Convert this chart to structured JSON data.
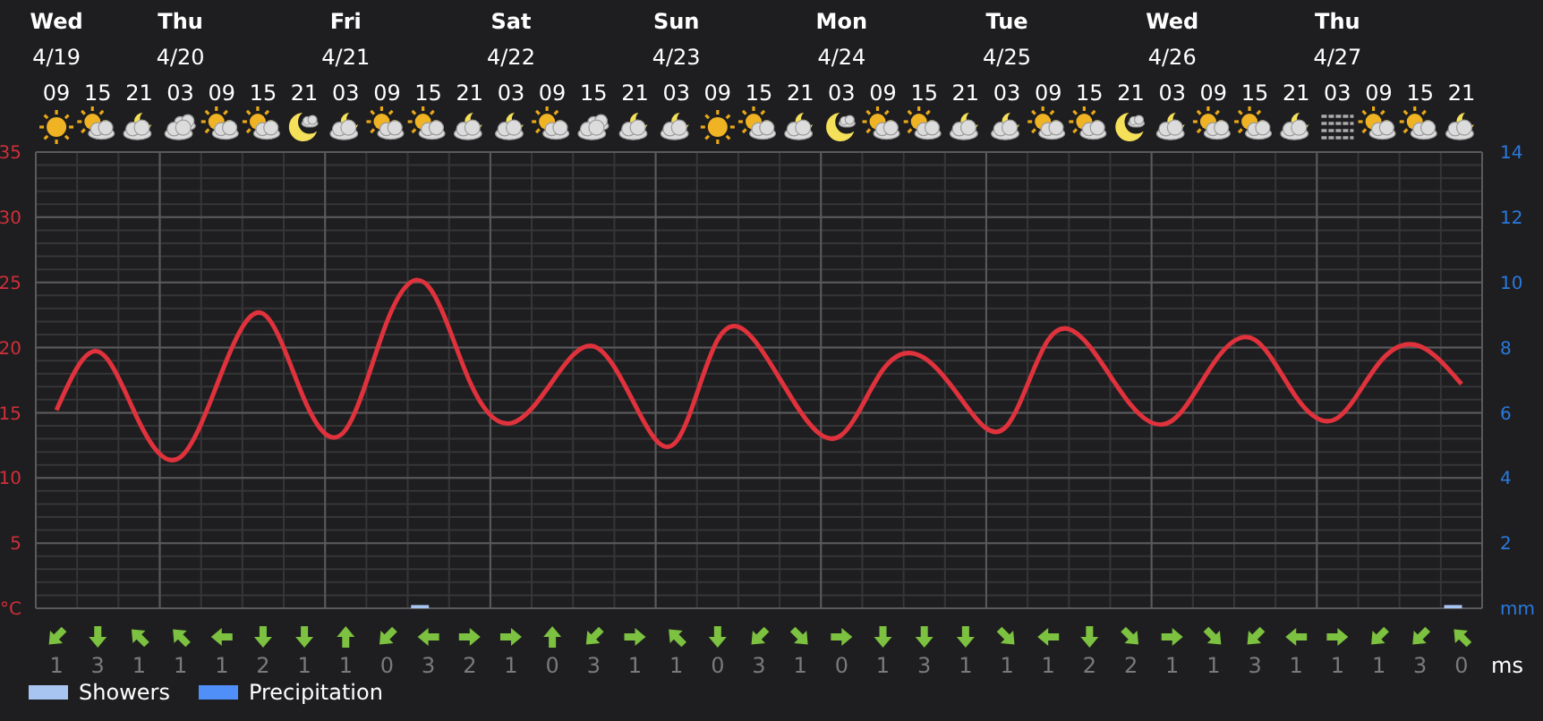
{
  "chart_data": {
    "type": "line",
    "categories": [
      "Wed\n4/19\n09",
      "15",
      "21",
      "Thu\n4/20\n03",
      "09",
      "15",
      "21",
      "Fri\n4/21\n03",
      "09",
      "15",
      "21",
      "Sat\n4/22\n03",
      "09",
      "15",
      "21",
      "Sun\n4/23\n03",
      "09",
      "15",
      "21",
      "Mon\n4/24\n03",
      "09",
      "15",
      "21",
      "Tue\n4/25\n03",
      "09",
      "15",
      "21",
      "Wed\n4/26\n03",
      "09",
      "15",
      "21",
      "Thu\n4/27\n03",
      "09",
      "15",
      "21"
    ],
    "series": [
      {
        "color": "#e0323c",
        "values": [
          15.2,
          19.7,
          14.3,
          11.6,
          18.1,
          22.6,
          16.0,
          13.7,
          22.0,
          24.7,
          17.4,
          14.2,
          17.4,
          20.1,
          15.6,
          12.8,
          20.6,
          20.1,
          15.1,
          13.3,
          18.3,
          19.2,
          15.6,
          14.0,
          20.6,
          20.1,
          15.6,
          14.4,
          18.8,
          20.6,
          16.2,
          14.6,
          18.8,
          20.1,
          17.2
        ]
      },
      {
        "name": "Showers",
        "type": "bar",
        "axis": "y2",
        "color": "#a8c4f0",
        "values": [
          null,
          null,
          null,
          null,
          null,
          null,
          null,
          null,
          null,
          0.1,
          null,
          null,
          null,
          null,
          null,
          null,
          null,
          null,
          null,
          null,
          null,
          null,
          null,
          null,
          null,
          null,
          null,
          null,
          null,
          null,
          null,
          null,
          null,
          null,
          0.1
        ]
      },
      {
        "name": "Precipitation",
        "type": "bar",
        "axis": "y2",
        "color": "#4f8ff7",
        "values": [
          0,
          0,
          0,
          0,
          0,
          0,
          0,
          0,
          0,
          0,
          0,
          0,
          0,
          0,
          0,
          0,
          0,
          0,
          0,
          0,
          0,
          0,
          0,
          0,
          0,
          0,
          0,
          0,
          0,
          0,
          0,
          0,
          0,
          0,
          0
        ]
      }
    ],
    "ylim": [
      0,
      35
    ],
    "yticks": [
      {
        "value": 0,
        "label": "°C"
      },
      {
        "value": 1,
        "label": null
      },
      {
        "value": 2,
        "label": null
      },
      {
        "value": 3,
        "label": null
      },
      {
        "value": 4,
        "label": null
      },
      5,
      {
        "value": 6,
        "label": null
      },
      {
        "value": 7,
        "label": null
      },
      {
        "value": 8,
        "label": null
      },
      {
        "value": 9,
        "label": null
      },
      10,
      {
        "value": 11,
        "label": null
      },
      {
        "value": 12,
        "label": null
      },
      {
        "value": 13,
        "label": null
      },
      {
        "value": 14,
        "label": null
      },
      15,
      {
        "value": 16,
        "label": null
      },
      {
        "value": 17,
        "label": null
      },
      {
        "value": 18,
        "label": null
      },
      {
        "value": 19,
        "label": null
      },
      20,
      {
        "value": 21,
        "label": null
      },
      {
        "value": 22,
        "label": null
      },
      {
        "value": 23,
        "label": null
      },
      {
        "value": 24,
        "label": null
      },
      25,
      {
        "value": 26,
        "label": null
      },
      {
        "value": 27,
        "label": null
      },
      {
        "value": 28,
        "label": null
      },
      {
        "value": 29,
        "label": null
      },
      30,
      {
        "value": 31,
        "label": null
      },
      {
        "value": 32,
        "label": null
      },
      {
        "value": 33,
        "label": null
      },
      {
        "value": 34,
        "label": null
      },
      35
    ],
    "y2lim": [
      0,
      14
    ],
    "y2ticks": [
      {
        "value": 0,
        "label": "mm"
      },
      2,
      4,
      6,
      8,
      10,
      12,
      14
    ],
    "grid": true,
    "legend": "bottom left",
    "annotations": [
      "1",
      "3",
      "1",
      "1",
      "1",
      "2",
      "1",
      "1",
      "0",
      "3",
      "2",
      "1",
      "0",
      "3",
      "1",
      "1",
      "0",
      "3",
      "1",
      "0",
      "1",
      "3",
      "1",
      "1",
      "1",
      "2",
      "2",
      "1",
      "1",
      "3",
      "1",
      "1",
      "1",
      "3",
      "0",
      "ms"
    ]
  }
}
